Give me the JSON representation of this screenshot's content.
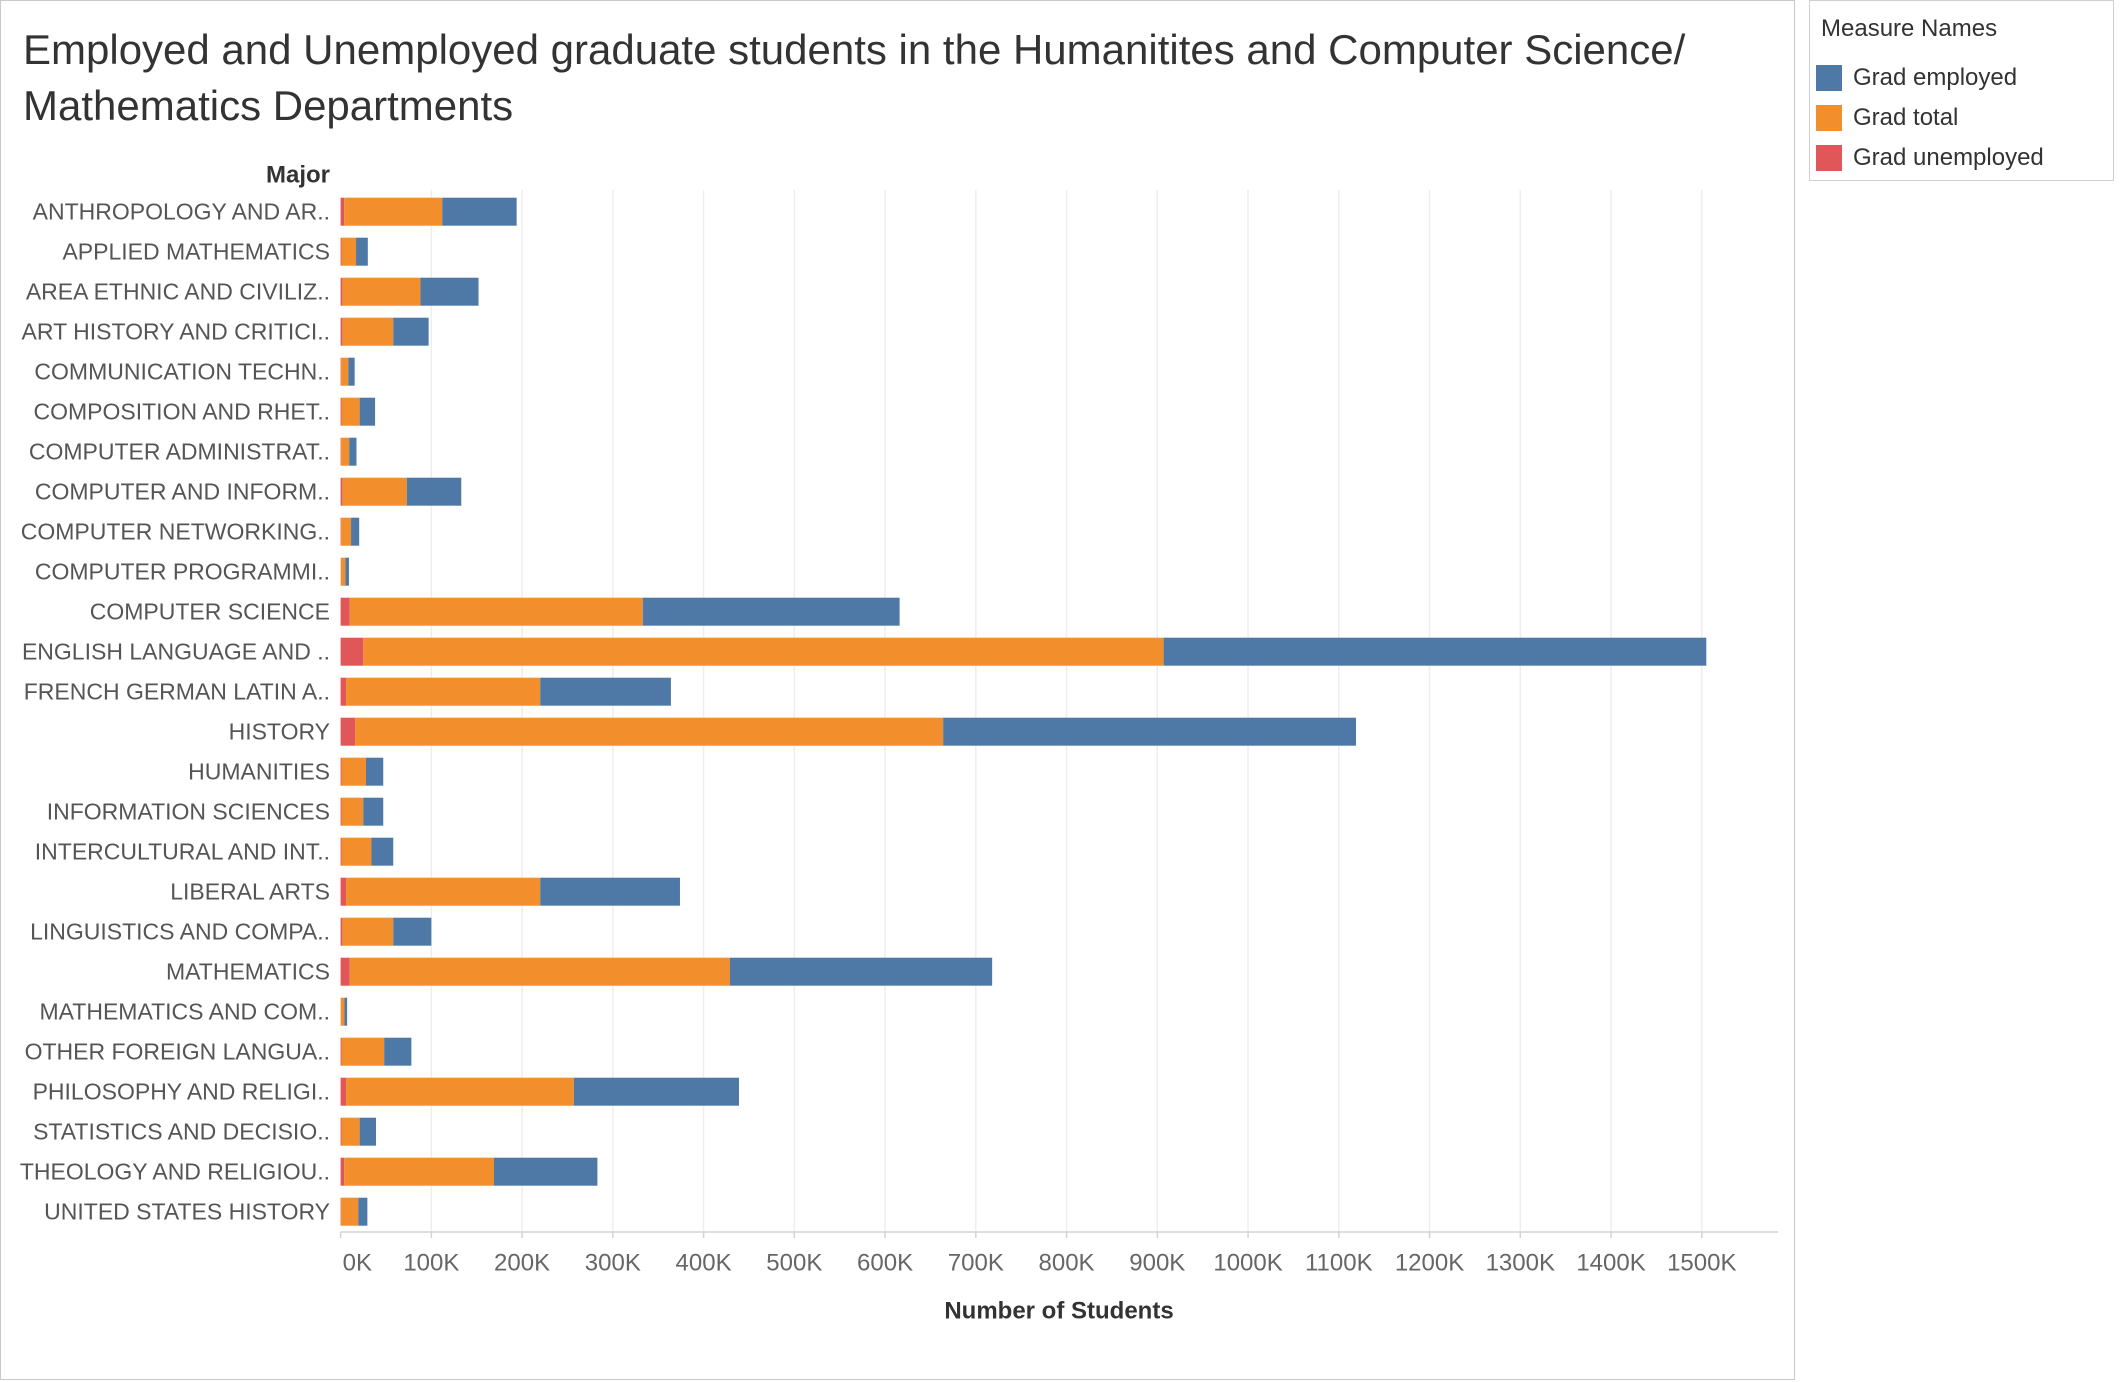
{
  "chart_data": {
    "type": "bar",
    "orientation": "horizontal",
    "stacked": true,
    "title": "Employed and Unemployed graduate students in the Humanitites and Computer Science/ Mathematics Departments",
    "xlabel": "Number of Students",
    "ylabel": "Major",
    "legend_title": "Measure Names",
    "legend_position": "right",
    "grid": true,
    "xlim": [
      0,
      1584000
    ],
    "xticks": [
      0,
      100000,
      200000,
      300000,
      400000,
      500000,
      600000,
      700000,
      800000,
      900000,
      1000000,
      1100000,
      1200000,
      1300000,
      1400000,
      1500000
    ],
    "tick_labels": [
      "0K",
      "100K",
      "200K",
      "300K",
      "400K",
      "500K",
      "600K",
      "700K",
      "800K",
      "900K",
      "1000K",
      "1100K",
      "1200K",
      "1300K",
      "1400K",
      "1500K"
    ],
    "categories": [
      "ANTHROPOLOGY AND AR..",
      "APPLIED MATHEMATICS",
      "AREA ETHNIC AND CIVILIZ..",
      "ART HISTORY AND CRITICI..",
      "COMMUNICATION TECHN..",
      "COMPOSITION AND RHET..",
      "COMPUTER ADMINISTRAT..",
      "COMPUTER AND INFORM..",
      "COMPUTER NETWORKING..",
      "COMPUTER PROGRAMMI..",
      "COMPUTER SCIENCE",
      "ENGLISH LANGUAGE AND ..",
      "FRENCH GERMAN LATIN A..",
      "HISTORY",
      "HUMANITIES",
      "INFORMATION SCIENCES",
      "INTERCULTURAL AND INT..",
      "LIBERAL ARTS",
      "LINGUISTICS AND COMPA..",
      "MATHEMATICS",
      "MATHEMATICS AND COM..",
      "OTHER FOREIGN LANGUA..",
      "PHILOSOPHY AND RELIGI..",
      "STATISTICS AND DECISIO..",
      "THEOLOGY AND RELIGIOU..",
      "UNITED STATES HISTORY"
    ],
    "series": [
      {
        "name": "Grad employed",
        "color": "#4e79a7",
        "values": [
          82000,
          13000,
          64000,
          39000,
          7000,
          17000,
          8000,
          60000,
          9000,
          4000,
          283000,
          598000,
          144000,
          455000,
          19000,
          22000,
          24000,
          154000,
          42000,
          289000,
          3000,
          30000,
          182000,
          18000,
          114000,
          10000
        ]
      },
      {
        "name": "Grad total",
        "color": "#f28e2b",
        "values": [
          108000,
          16000,
          86000,
          56000,
          8000,
          20000,
          9000,
          71000,
          11000,
          5000,
          323000,
          882000,
          214000,
          648000,
          27000,
          24000,
          33000,
          214000,
          56000,
          419000,
          4000,
          47000,
          251000,
          20000,
          165000,
          19000
        ]
      },
      {
        "name": "Grad unemployed",
        "color": "#e15759",
        "values": [
          4000,
          1000,
          2000,
          2000,
          500,
          1000,
          500,
          2000,
          500,
          200,
          10000,
          25000,
          6000,
          16000,
          1000,
          1000,
          1000,
          6000,
          2000,
          10000,
          200,
          1000,
          6000,
          1000,
          4000,
          500
        ]
      }
    ]
  }
}
